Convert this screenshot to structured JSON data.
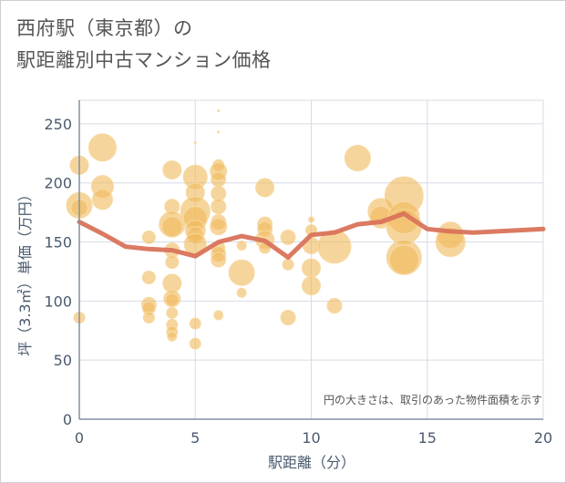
{
  "title": {
    "line1": "西府駅（東京都）の",
    "line2": "駅距離別中古マンション価格"
  },
  "colors": {
    "bubble": "#f0b95a",
    "bubble_stroke": "#f7d8a0",
    "line": "#d9735a",
    "grid": "#d7dce3",
    "axis": "#4a5a6e"
  },
  "chart_data": {
    "type": "scatter",
    "xlabel": "駅距離（分）",
    "ylabel": "坪（3.3㎡）単価（万円）",
    "xlim": [
      0,
      20
    ],
    "ylim": [
      0,
      270
    ],
    "xticks": [
      0,
      5,
      10,
      15,
      20
    ],
    "yticks": [
      0,
      50,
      100,
      150,
      200,
      250
    ],
    "grid": true,
    "annotation": "円の大きさは、取引のあった物件面積を示す",
    "bubbles": [
      {
        "x": 0,
        "y": 215,
        "s": 10
      },
      {
        "x": 0,
        "y": 181,
        "s": 14
      },
      {
        "x": 0,
        "y": 179,
        "s": 9
      },
      {
        "x": 0,
        "y": 86,
        "s": 6
      },
      {
        "x": 1,
        "y": 230,
        "s": 15
      },
      {
        "x": 1,
        "y": 197,
        "s": 12
      },
      {
        "x": 1,
        "y": 186,
        "s": 11
      },
      {
        "x": 3,
        "y": 154,
        "s": 7
      },
      {
        "x": 3,
        "y": 120,
        "s": 7
      },
      {
        "x": 3,
        "y": 97,
        "s": 8
      },
      {
        "x": 3,
        "y": 94,
        "s": 7
      },
      {
        "x": 3,
        "y": 86,
        "s": 6
      },
      {
        "x": 4,
        "y": 211,
        "s": 10
      },
      {
        "x": 4,
        "y": 180,
        "s": 8
      },
      {
        "x": 4,
        "y": 165,
        "s": 14
      },
      {
        "x": 4,
        "y": 163,
        "s": 11
      },
      {
        "x": 4,
        "y": 143,
        "s": 8
      },
      {
        "x": 4,
        "y": 133,
        "s": 7
      },
      {
        "x": 4,
        "y": 115,
        "s": 10
      },
      {
        "x": 4,
        "y": 102,
        "s": 9
      },
      {
        "x": 4,
        "y": 101,
        "s": 7
      },
      {
        "x": 4,
        "y": 90,
        "s": 6
      },
      {
        "x": 4,
        "y": 80,
        "s": 6
      },
      {
        "x": 4,
        "y": 74,
        "s": 6
      },
      {
        "x": 4,
        "y": 70,
        "s": 5
      },
      {
        "x": 5,
        "y": 234,
        "s": 1
      },
      {
        "x": 5,
        "y": 205,
        "s": 13
      },
      {
        "x": 5,
        "y": 192,
        "s": 10
      },
      {
        "x": 5,
        "y": 176,
        "s": 16
      },
      {
        "x": 5,
        "y": 170,
        "s": 13
      },
      {
        "x": 5,
        "y": 160,
        "s": 11
      },
      {
        "x": 5,
        "y": 156,
        "s": 9
      },
      {
        "x": 5,
        "y": 148,
        "s": 12
      },
      {
        "x": 5,
        "y": 81,
        "s": 6
      },
      {
        "x": 5,
        "y": 64,
        "s": 6
      },
      {
        "x": 6,
        "y": 261,
        "s": 1
      },
      {
        "x": 6,
        "y": 243,
        "s": 1
      },
      {
        "x": 6,
        "y": 215,
        "s": 6
      },
      {
        "x": 6,
        "y": 210,
        "s": 9
      },
      {
        "x": 6,
        "y": 203,
        "s": 8
      },
      {
        "x": 6,
        "y": 191,
        "s": 8
      },
      {
        "x": 6,
        "y": 180,
        "s": 8
      },
      {
        "x": 6,
        "y": 167,
        "s": 8
      },
      {
        "x": 6,
        "y": 163,
        "s": 9
      },
      {
        "x": 6,
        "y": 145,
        "s": 7
      },
      {
        "x": 6,
        "y": 140,
        "s": 8
      },
      {
        "x": 6,
        "y": 135,
        "s": 8
      },
      {
        "x": 6,
        "y": 88,
        "s": 5
      },
      {
        "x": 7,
        "y": 147,
        "s": 5
      },
      {
        "x": 7,
        "y": 124,
        "s": 14
      },
      {
        "x": 7,
        "y": 107,
        "s": 5
      },
      {
        "x": 8,
        "y": 196,
        "s": 10
      },
      {
        "x": 8,
        "y": 165,
        "s": 8
      },
      {
        "x": 8,
        "y": 161,
        "s": 8
      },
      {
        "x": 8,
        "y": 152,
        "s": 10
      },
      {
        "x": 8,
        "y": 145,
        "s": 6
      },
      {
        "x": 9,
        "y": 154,
        "s": 8
      },
      {
        "x": 9,
        "y": 131,
        "s": 6
      },
      {
        "x": 9,
        "y": 86,
        "s": 8
      },
      {
        "x": 10,
        "y": 169,
        "s": 3
      },
      {
        "x": 10,
        "y": 160,
        "s": 6
      },
      {
        "x": 10,
        "y": 147,
        "s": 9
      },
      {
        "x": 10,
        "y": 128,
        "s": 10
      },
      {
        "x": 10,
        "y": 113,
        "s": 10
      },
      {
        "x": 11,
        "y": 146,
        "s": 18
      },
      {
        "x": 11,
        "y": 96,
        "s": 8
      },
      {
        "x": 12,
        "y": 221,
        "s": 14
      },
      {
        "x": 13,
        "y": 176,
        "s": 14
      },
      {
        "x": 13,
        "y": 171,
        "s": 12
      },
      {
        "x": 14,
        "y": 189,
        "s": 21
      },
      {
        "x": 14,
        "y": 171,
        "s": 17
      },
      {
        "x": 14,
        "y": 163,
        "s": 19
      },
      {
        "x": 14,
        "y": 137,
        "s": 19
      },
      {
        "x": 14,
        "y": 135,
        "s": 16
      },
      {
        "x": 16,
        "y": 156,
        "s": 14
      },
      {
        "x": 16,
        "y": 150,
        "s": 16
      }
    ],
    "series": [
      {
        "x": [
          0,
          1,
          2,
          3,
          4,
          5,
          6,
          7,
          8,
          9,
          10,
          11,
          12,
          13,
          14,
          15,
          16,
          17,
          18,
          19,
          20
        ],
        "y": [
          167,
          157,
          146,
          144,
          143,
          138,
          150,
          155,
          151,
          137,
          156,
          158,
          165,
          167,
          174,
          161,
          159,
          158,
          159,
          160,
          161
        ]
      }
    ]
  }
}
